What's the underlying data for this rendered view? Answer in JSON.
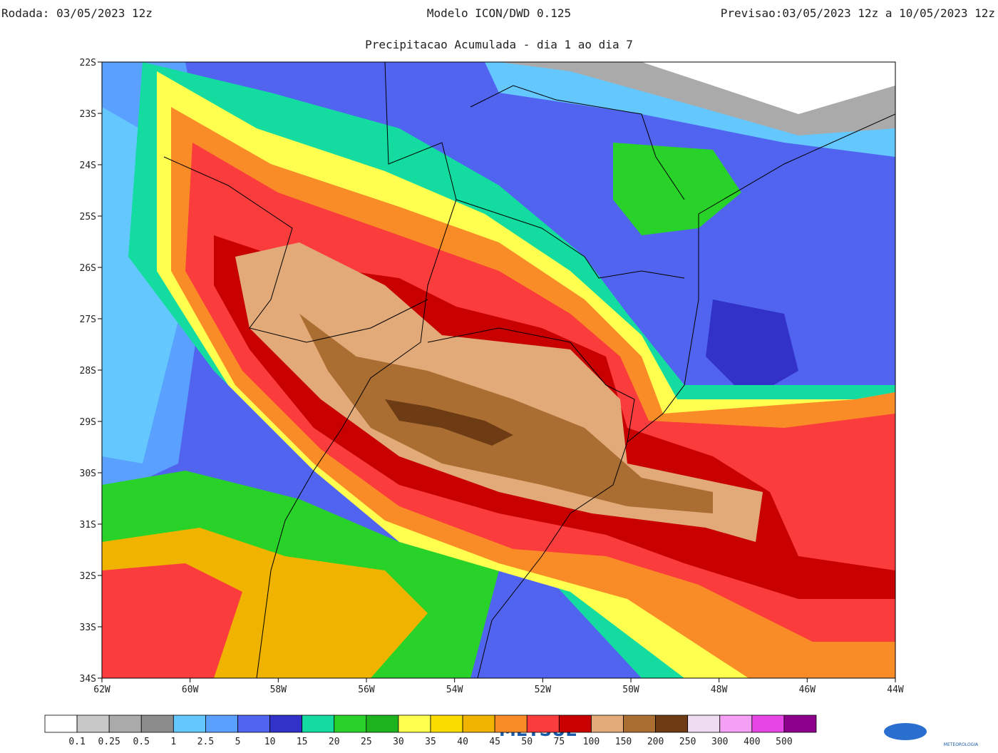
{
  "header": {
    "run": "Rodada: 03/05/2023 12z",
    "model": "Modelo ICON/DWD 0.125",
    "forecast": "Previsao:03/05/2023 12z a 10/05/2023 12z",
    "subtitle": "Precipitacao Acumulada - dia 1 ao dia 7"
  },
  "map": {
    "lat_labels": [
      "22S",
      "23S",
      "24S",
      "25S",
      "26S",
      "27S",
      "28S",
      "29S",
      "30S",
      "31S",
      "32S",
      "33S",
      "34S"
    ],
    "lon_labels": [
      "62W",
      "60W",
      "58W",
      "56W",
      "54W",
      "52W",
      "50W",
      "48W",
      "46W",
      "44W"
    ]
  },
  "colorbar": {
    "colors": [
      "#ffffff",
      "#c8c8c8",
      "#aaaaaa",
      "#8c8c8c",
      "#64c8ff",
      "#5aa0ff",
      "#5064f0",
      "#3232c8",
      "#14dca0",
      "#28d228",
      "#1eb41e",
      "#ffff50",
      "#fadc00",
      "#f0b400",
      "#fa8c28",
      "#fa3c3c",
      "#c80000",
      "#e1aa78",
      "#aa6e32",
      "#6e3c14",
      "#f0dcf0",
      "#f5a0f5",
      "#e646e6",
      "#8c008c"
    ],
    "labels": [
      "0.1",
      "0.25",
      "0.5",
      "1",
      "2.5",
      "5",
      "10",
      "15",
      "20",
      "25",
      "30",
      "35",
      "40",
      "45",
      "50",
      "75",
      "100",
      "150",
      "200",
      "250",
      "300",
      "400",
      "500"
    ]
  },
  "logo": {
    "name": "METSUL",
    "tagline": "METEOROLOGIA"
  }
}
